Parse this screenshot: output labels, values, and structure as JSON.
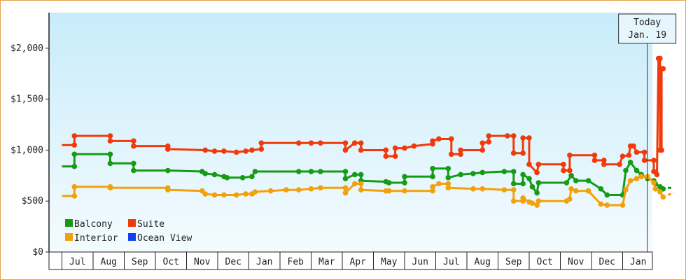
{
  "chart_data": {
    "type": "line",
    "title": "",
    "xlabel": "",
    "ylabel": "",
    "ylim": [
      0,
      2350
    ],
    "y_ticks": [
      0,
      500,
      1000,
      1500,
      2000
    ],
    "y_tick_labels": [
      "$0",
      "$500",
      "$1,000",
      "$1,500",
      "$2,000"
    ],
    "months": [
      "Jul",
      "Aug",
      "Sep",
      "Oct",
      "Nov",
      "Dec",
      "Jan",
      "Feb",
      "Mar",
      "Apr",
      "May",
      "Jun",
      "Jul",
      "Aug",
      "Sep",
      "Oct",
      "Nov",
      "Dec",
      "Jan"
    ],
    "x_axis_note": "x values are months elapsed from the left edge of the plot; month labels are centered between ticks",
    "today": {
      "label_line1": "Today",
      "label_line2": "Jan. 19",
      "x": 18.79
    },
    "legend": {
      "position": "bottom-left",
      "rows": [
        [
          "Balcony",
          "Suite"
        ],
        [
          "Interior",
          "Ocean View"
        ]
      ]
    },
    "grid": false,
    "series": [
      {
        "name": "Balcony",
        "color": "#169b16",
        "points": [
          [
            0,
            840
          ],
          [
            0.4,
            840
          ],
          [
            0.4,
            960
          ],
          [
            1.55,
            960
          ],
          [
            1.55,
            870
          ],
          [
            2.3,
            870
          ],
          [
            2.3,
            800
          ],
          [
            3.4,
            800
          ],
          [
            4.5,
            790
          ],
          [
            4.6,
            770
          ],
          [
            4.9,
            760
          ],
          [
            5.2,
            740
          ],
          [
            5.3,
            730
          ],
          [
            5.8,
            730
          ],
          [
            6.1,
            740
          ],
          [
            6.2,
            790
          ],
          [
            7.6,
            790
          ],
          [
            8.0,
            790
          ],
          [
            8.3,
            790
          ],
          [
            9.1,
            790
          ],
          [
            9.1,
            720
          ],
          [
            9.4,
            760
          ],
          [
            9.6,
            760
          ],
          [
            9.6,
            700
          ],
          [
            10.4,
            690
          ],
          [
            10.5,
            680
          ],
          [
            11.0,
            680
          ],
          [
            11.0,
            740
          ],
          [
            11.9,
            740
          ],
          [
            11.9,
            820
          ],
          [
            12.4,
            820
          ],
          [
            12.4,
            730
          ],
          [
            12.8,
            760
          ],
          [
            13.2,
            770
          ],
          [
            13.5,
            780
          ],
          [
            14.2,
            790
          ],
          [
            14.5,
            790
          ],
          [
            14.5,
            670
          ],
          [
            14.8,
            670
          ],
          [
            14.8,
            760
          ],
          [
            15.0,
            720
          ],
          [
            15.1,
            640
          ],
          [
            15.25,
            580
          ],
          [
            15.3,
            680
          ],
          [
            16.2,
            680
          ],
          [
            16.35,
            750
          ],
          [
            16.5,
            700
          ],
          [
            16.9,
            700
          ],
          [
            17.3,
            620
          ],
          [
            17.5,
            560
          ],
          [
            18.0,
            560
          ],
          [
            18.1,
            800
          ],
          [
            18.25,
            880
          ],
          [
            18.45,
            800
          ],
          [
            18.6,
            760
          ],
          [
            18.8,
            720
          ],
          [
            19.0,
            700
          ],
          [
            19.05,
            670
          ],
          [
            19.2,
            640
          ],
          [
            19.3,
            620
          ]
        ],
        "forecast": [
          [
            19.45,
            630
          ],
          [
            19.65,
            630
          ]
        ]
      },
      {
        "name": "Suite",
        "color": "#f03a0b",
        "points": [
          [
            0,
            1050
          ],
          [
            0.4,
            1050
          ],
          [
            0.4,
            1140
          ],
          [
            1.55,
            1140
          ],
          [
            1.55,
            1090
          ],
          [
            2.3,
            1090
          ],
          [
            2.3,
            1040
          ],
          [
            3.4,
            1040
          ],
          [
            3.4,
            1010
          ],
          [
            4.6,
            1000
          ],
          [
            4.9,
            990
          ],
          [
            5.2,
            990
          ],
          [
            5.6,
            980
          ],
          [
            5.9,
            990
          ],
          [
            6.1,
            1000
          ],
          [
            6.4,
            1010
          ],
          [
            6.4,
            1070
          ],
          [
            7.6,
            1070
          ],
          [
            8.0,
            1070
          ],
          [
            8.3,
            1070
          ],
          [
            9.1,
            1070
          ],
          [
            9.1,
            1000
          ],
          [
            9.4,
            1070
          ],
          [
            9.6,
            1070
          ],
          [
            9.6,
            1000
          ],
          [
            10.4,
            1000
          ],
          [
            10.4,
            940
          ],
          [
            10.7,
            940
          ],
          [
            10.7,
            1020
          ],
          [
            11.0,
            1020
          ],
          [
            11.3,
            1040
          ],
          [
            11.9,
            1060
          ],
          [
            11.9,
            1090
          ],
          [
            12.1,
            1110
          ],
          [
            12.5,
            1110
          ],
          [
            12.5,
            960
          ],
          [
            12.8,
            960
          ],
          [
            12.8,
            1000
          ],
          [
            13.5,
            1000
          ],
          [
            13.5,
            1070
          ],
          [
            13.7,
            1080
          ],
          [
            13.7,
            1140
          ],
          [
            14.3,
            1140
          ],
          [
            14.5,
            1140
          ],
          [
            14.5,
            970
          ],
          [
            14.8,
            970
          ],
          [
            14.8,
            1120
          ],
          [
            15.0,
            1120
          ],
          [
            15.0,
            860
          ],
          [
            15.25,
            780
          ],
          [
            15.3,
            860
          ],
          [
            16.1,
            860
          ],
          [
            16.1,
            800
          ],
          [
            16.3,
            800
          ],
          [
            16.3,
            950
          ],
          [
            17.1,
            950
          ],
          [
            17.1,
            900
          ],
          [
            17.4,
            900
          ],
          [
            17.4,
            860
          ],
          [
            17.9,
            860
          ],
          [
            18.0,
            940
          ],
          [
            18.2,
            950
          ],
          [
            18.25,
            1040
          ],
          [
            18.35,
            1040
          ],
          [
            18.45,
            980
          ],
          [
            18.7,
            980
          ],
          [
            18.7,
            900
          ],
          [
            19.0,
            900
          ],
          [
            19.0,
            790
          ],
          [
            19.1,
            760
          ],
          [
            19.15,
            1900
          ],
          [
            19.2,
            1900
          ],
          [
            19.2,
            1000
          ],
          [
            19.25,
            1000
          ],
          [
            19.25,
            1800
          ],
          [
            19.3,
            1800
          ]
        ]
      },
      {
        "name": "Interior",
        "color": "#f3a10b",
        "points": [
          [
            0,
            550
          ],
          [
            0.4,
            550
          ],
          [
            0.4,
            640
          ],
          [
            1.55,
            640
          ],
          [
            1.55,
            630
          ],
          [
            3.4,
            630
          ],
          [
            3.4,
            610
          ],
          [
            4.5,
            600
          ],
          [
            4.6,
            570
          ],
          [
            4.9,
            560
          ],
          [
            5.2,
            560
          ],
          [
            5.6,
            560
          ],
          [
            5.9,
            570
          ],
          [
            6.1,
            570
          ],
          [
            6.2,
            590
          ],
          [
            6.7,
            600
          ],
          [
            7.2,
            610
          ],
          [
            7.6,
            610
          ],
          [
            8.0,
            620
          ],
          [
            8.3,
            630
          ],
          [
            9.1,
            630
          ],
          [
            9.1,
            580
          ],
          [
            9.4,
            670
          ],
          [
            9.6,
            670
          ],
          [
            9.6,
            610
          ],
          [
            10.4,
            600
          ],
          [
            10.5,
            600
          ],
          [
            11.0,
            600
          ],
          [
            11.9,
            600
          ],
          [
            11.9,
            640
          ],
          [
            12.1,
            670
          ],
          [
            12.4,
            670
          ],
          [
            12.4,
            630
          ],
          [
            13.2,
            620
          ],
          [
            13.5,
            620
          ],
          [
            14.2,
            610
          ],
          [
            14.5,
            610
          ],
          [
            14.5,
            500
          ],
          [
            14.8,
            500
          ],
          [
            14.8,
            530
          ],
          [
            15.0,
            490
          ],
          [
            15.1,
            480
          ],
          [
            15.25,
            460
          ],
          [
            15.3,
            500
          ],
          [
            16.2,
            500
          ],
          [
            16.3,
            520
          ],
          [
            16.35,
            620
          ],
          [
            16.5,
            600
          ],
          [
            16.9,
            600
          ],
          [
            16.9,
            600
          ],
          [
            17.3,
            470
          ],
          [
            17.5,
            460
          ],
          [
            18.0,
            460
          ],
          [
            18.1,
            610
          ],
          [
            18.25,
            700
          ],
          [
            18.45,
            720
          ],
          [
            18.6,
            740
          ],
          [
            18.8,
            740
          ],
          [
            19.0,
            680
          ],
          [
            19.05,
            620
          ],
          [
            19.2,
            590
          ],
          [
            19.3,
            540
          ]
        ],
        "forecast": [
          [
            19.45,
            560
          ],
          [
            19.65,
            580
          ]
        ]
      },
      {
        "name": "Ocean View",
        "color": "#1040f0",
        "points": []
      }
    ]
  }
}
